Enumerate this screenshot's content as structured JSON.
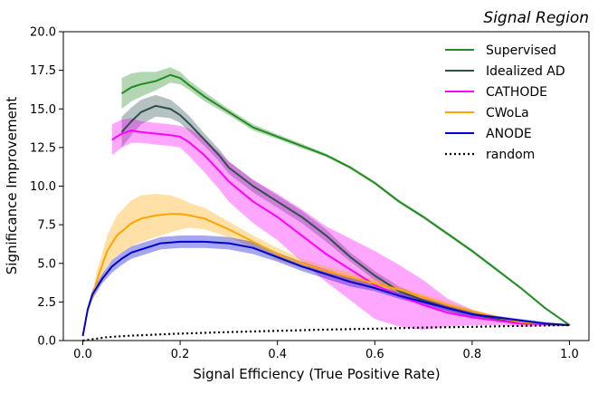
{
  "chart_data": {
    "type": "line",
    "title": "Signal Region",
    "xlabel": "Signal Efficiency (True Positive Rate)",
    "ylabel": "Significance Improvement",
    "xlim": [
      -0.04,
      1.04
    ],
    "ylim": [
      0,
      20
    ],
    "xticks": [
      "0.0",
      "0.2",
      "0.4",
      "0.6",
      "0.8",
      "1.0"
    ],
    "yticks": [
      "0.0",
      "2.5",
      "5.0",
      "7.5",
      "10.0",
      "12.5",
      "15.0",
      "17.5",
      "20.0"
    ],
    "legend_position": "top-right",
    "series": [
      {
        "name": "Supervised",
        "color": "#228b22",
        "style": "solid",
        "band": true,
        "x": [
          0.08,
          0.1,
          0.12,
          0.15,
          0.18,
          0.2,
          0.22,
          0.25,
          0.3,
          0.35,
          0.4,
          0.45,
          0.5,
          0.55,
          0.6,
          0.65,
          0.7,
          0.75,
          0.8,
          0.85,
          0.9,
          0.95,
          1.0
        ],
        "y": [
          16.0,
          16.4,
          16.6,
          16.8,
          17.2,
          17.0,
          16.5,
          15.8,
          14.8,
          13.8,
          13.2,
          12.6,
          12.0,
          11.2,
          10.2,
          9.0,
          8.0,
          6.9,
          5.8,
          4.6,
          3.4,
          2.1,
          1.0
        ],
        "band_width": [
          1.0,
          0.9,
          0.8,
          0.6,
          0.5,
          0.4,
          0.3,
          0.3,
          0.2,
          0.2,
          0.15,
          0.15,
          0.1,
          0.1,
          0.1,
          0.1,
          0.1,
          0.1,
          0.1,
          0.1,
          0.05,
          0.05,
          0.05
        ]
      },
      {
        "name": "Idealized AD",
        "color": "#2f4f4f",
        "style": "solid",
        "band": true,
        "x": [
          0.08,
          0.1,
          0.12,
          0.15,
          0.18,
          0.2,
          0.22,
          0.25,
          0.28,
          0.3,
          0.35,
          0.4,
          0.45,
          0.5,
          0.55,
          0.6,
          0.65,
          0.7,
          0.75,
          0.8,
          0.85,
          0.9,
          1.0
        ],
        "y": [
          13.5,
          14.2,
          14.8,
          15.2,
          15.0,
          14.6,
          14.0,
          13.0,
          12.0,
          11.2,
          10.0,
          9.0,
          8.0,
          6.8,
          5.4,
          4.2,
          3.2,
          2.6,
          2.1,
          1.7,
          1.4,
          1.2,
          1.0
        ],
        "band_width": [
          1.0,
          0.9,
          0.8,
          0.7,
          0.6,
          0.5,
          0.5,
          0.4,
          0.4,
          0.4,
          0.4,
          0.4,
          0.4,
          0.4,
          0.3,
          0.3,
          0.3,
          0.2,
          0.2,
          0.2,
          0.1,
          0.1,
          0.05
        ]
      },
      {
        "name": "CATHODE",
        "color": "#ff00ff",
        "style": "solid",
        "band": true,
        "x": [
          0.06,
          0.08,
          0.1,
          0.12,
          0.15,
          0.18,
          0.2,
          0.22,
          0.25,
          0.28,
          0.3,
          0.35,
          0.4,
          0.45,
          0.5,
          0.55,
          0.6,
          0.65,
          0.7,
          0.75,
          0.8,
          0.85,
          0.9,
          1.0
        ],
        "y": [
          13.0,
          13.4,
          13.6,
          13.5,
          13.4,
          13.3,
          13.2,
          12.8,
          12.0,
          11.0,
          10.3,
          9.0,
          8.0,
          6.8,
          5.6,
          4.6,
          3.6,
          2.9,
          2.3,
          1.8,
          1.5,
          1.3,
          1.1,
          1.0
        ],
        "band_width": [
          1.0,
          0.9,
          0.8,
          0.7,
          0.7,
          0.7,
          0.7,
          0.9,
          1.1,
          1.2,
          1.3,
          1.4,
          1.5,
          1.7,
          1.8,
          2.0,
          2.2,
          2.0,
          1.6,
          0.9,
          0.5,
          0.3,
          0.2,
          0.05
        ]
      },
      {
        "name": "CWoLa",
        "color": "#ffa500",
        "style": "solid",
        "band": true,
        "x": [
          0.02,
          0.03,
          0.05,
          0.07,
          0.1,
          0.12,
          0.15,
          0.18,
          0.2,
          0.22,
          0.25,
          0.3,
          0.35,
          0.4,
          0.45,
          0.5,
          0.55,
          0.6,
          0.65,
          0.7,
          0.75,
          0.8,
          0.85,
          0.9,
          1.0
        ],
        "y": [
          2.8,
          4.0,
          5.8,
          6.8,
          7.6,
          7.9,
          8.1,
          8.2,
          8.2,
          8.1,
          7.9,
          7.2,
          6.4,
          5.6,
          5.0,
          4.5,
          4.1,
          3.7,
          3.3,
          2.8,
          2.3,
          1.9,
          1.5,
          1.2,
          1.0
        ],
        "band_width": [
          0.3,
          0.6,
          1.0,
          1.3,
          1.5,
          1.5,
          1.4,
          1.2,
          1.0,
          0.8,
          0.7,
          0.5,
          0.4,
          0.4,
          0.3,
          0.3,
          0.3,
          0.3,
          0.2,
          0.2,
          0.2,
          0.1,
          0.1,
          0.1,
          0.05
        ]
      },
      {
        "name": "ANODE",
        "color": "#0000cd",
        "style": "solid",
        "band": true,
        "x": [
          0.0,
          0.01,
          0.02,
          0.04,
          0.06,
          0.08,
          0.1,
          0.13,
          0.16,
          0.2,
          0.25,
          0.3,
          0.35,
          0.4,
          0.45,
          0.5,
          0.55,
          0.6,
          0.65,
          0.7,
          0.75,
          0.8,
          0.85,
          0.9,
          0.95,
          1.0
        ],
        "y": [
          0.3,
          2.0,
          3.0,
          4.0,
          4.8,
          5.3,
          5.7,
          6.0,
          6.3,
          6.4,
          6.4,
          6.3,
          6.0,
          5.4,
          4.8,
          4.3,
          3.8,
          3.4,
          2.9,
          2.5,
          2.1,
          1.7,
          1.5,
          1.3,
          1.1,
          1.0
        ],
        "band_width": [
          0.1,
          0.2,
          0.3,
          0.3,
          0.4,
          0.4,
          0.4,
          0.4,
          0.4,
          0.4,
          0.4,
          0.4,
          0.4,
          0.3,
          0.3,
          0.3,
          0.3,
          0.2,
          0.2,
          0.2,
          0.2,
          0.2,
          0.1,
          0.1,
          0.1,
          0.05
        ]
      },
      {
        "name": "random",
        "color": "#000000",
        "style": "dotted",
        "band": false,
        "x": [
          0.0,
          0.05,
          0.1,
          0.2,
          0.3,
          0.4,
          0.5,
          0.6,
          0.7,
          0.8,
          0.9,
          1.0
        ],
        "y": [
          0.0,
          0.22,
          0.32,
          0.45,
          0.55,
          0.63,
          0.71,
          0.77,
          0.84,
          0.89,
          0.95,
          1.0
        ]
      }
    ]
  }
}
